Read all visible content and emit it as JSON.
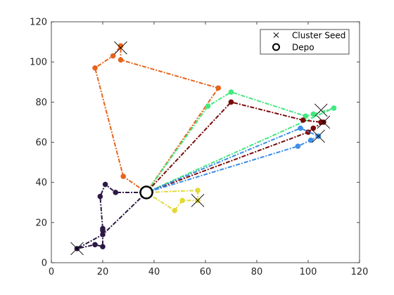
{
  "chart_data": {
    "type": "line",
    "title": "",
    "xlabel": "",
    "ylabel": "",
    "xlim": [
      0,
      120
    ],
    "ylim": [
      0,
      120
    ],
    "xticks": [
      0,
      20,
      40,
      60,
      80,
      100,
      120
    ],
    "yticks": [
      0,
      20,
      40,
      60,
      80,
      100,
      120
    ],
    "grid": false,
    "legend": {
      "placement": "top-right",
      "entries": [
        {
          "label": "Cluster Seed",
          "marker": "x"
        },
        {
          "label": "Depo",
          "marker": "o"
        }
      ]
    },
    "depot": {
      "x": 37,
      "y": 35
    },
    "routes": [
      {
        "color": "#e8631a",
        "points": [
          [
            37,
            35
          ],
          [
            28,
            43
          ],
          [
            17,
            97
          ],
          [
            24,
            103
          ],
          [
            27,
            108
          ],
          [
            27,
            101
          ],
          [
            65,
            87
          ],
          [
            37,
            35
          ]
        ]
      },
      {
        "color": "#42e87f",
        "points": [
          [
            37,
            35
          ],
          [
            61,
            78
          ],
          [
            70,
            85
          ],
          [
            99,
            73
          ],
          [
            102,
            74
          ],
          [
            110,
            77
          ],
          [
            37,
            35
          ]
        ]
      },
      {
        "color": "#7a0a0a",
        "points": [
          [
            37,
            35
          ],
          [
            70,
            80
          ],
          [
            98,
            71
          ],
          [
            105,
            70
          ],
          [
            106,
            70
          ],
          [
            102,
            67
          ],
          [
            100,
            65
          ],
          [
            37,
            35
          ]
        ]
      },
      {
        "color": "#3f8fe8",
        "points": [
          [
            37,
            35
          ],
          [
            97,
            67
          ],
          [
            104,
            63
          ],
          [
            101,
            61
          ],
          [
            96,
            58
          ],
          [
            37,
            35
          ]
        ]
      },
      {
        "color": "#e3d93a",
        "points": [
          [
            37,
            35
          ],
          [
            48,
            26
          ],
          [
            51,
            31
          ],
          [
            57,
            31
          ],
          [
            57,
            36
          ],
          [
            37,
            35
          ]
        ]
      },
      {
        "color": "#2d1845",
        "points": [
          [
            37,
            35
          ],
          [
            25,
            35
          ],
          [
            21,
            39
          ],
          [
            19,
            33
          ],
          [
            20,
            17
          ],
          [
            20,
            16
          ],
          [
            20,
            8
          ],
          [
            17,
            9
          ],
          [
            10,
            7
          ],
          [
            20,
            14
          ],
          [
            37,
            35
          ]
        ]
      }
    ],
    "cluster_seeds": [
      [
        27,
        107
      ],
      [
        105,
        76
      ],
      [
        106,
        70
      ],
      [
        104,
        63
      ],
      [
        57,
        31
      ],
      [
        10,
        7
      ]
    ]
  }
}
